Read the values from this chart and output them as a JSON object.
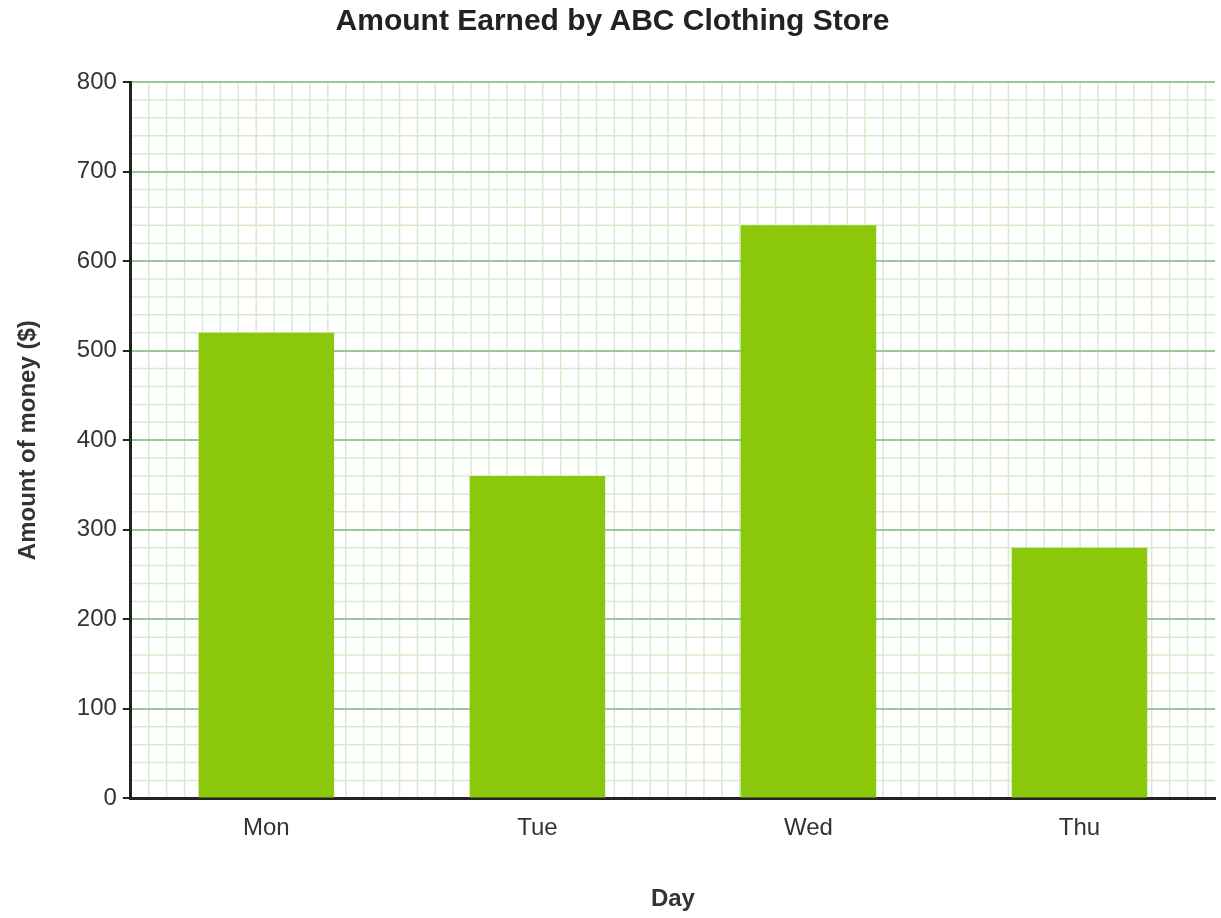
{
  "chart_data": {
    "type": "bar",
    "title": "Amount Earned by ABC Clothing Store",
    "xlabel": "Day",
    "ylabel": "Amount of money ($)",
    "categories": [
      "Mon",
      "Tue",
      "Wed",
      "Thu"
    ],
    "values": [
      520,
      360,
      640,
      280
    ],
    "color": "#8bc70a",
    "ylim": [
      0,
      800
    ],
    "yticks": [
      0,
      100,
      200,
      300,
      400,
      500,
      600,
      700,
      800
    ],
    "grid": true,
    "legend": false
  }
}
